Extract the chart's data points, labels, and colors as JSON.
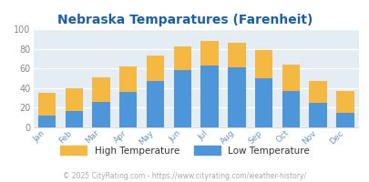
{
  "title": "Nebraska Temparatures (Farenheit)",
  "months": [
    "Jan",
    "Feb",
    "Mar",
    "Apr",
    "May",
    "Jun",
    "Jul",
    "Aug",
    "Sep",
    "Oct",
    "Nov",
    "Dec"
  ],
  "low_temps": [
    12,
    17,
    26,
    36,
    47,
    58,
    63,
    61,
    50,
    37,
    25,
    15
  ],
  "high_temps": [
    35,
    40,
    51,
    62,
    73,
    82,
    88,
    86,
    79,
    64,
    47,
    37
  ],
  "low_color": "#4d96d9",
  "high_color": "#f5b942",
  "bg_color": "#e4edf3",
  "title_color": "#1a5fa8",
  "tick_color": "#888888",
  "label_color": "#6699bb",
  "ylim": [
    0,
    100
  ],
  "yticks": [
    0,
    20,
    40,
    60,
    80,
    100
  ],
  "legend_high": "High Temperature",
  "legend_low": "Low Temperature",
  "footer": "© 2025 CityRating.com - https://www.cityrating.com/weather-history/",
  "footer_color": "#aaaaaa",
  "grid_color": "#ffffff"
}
